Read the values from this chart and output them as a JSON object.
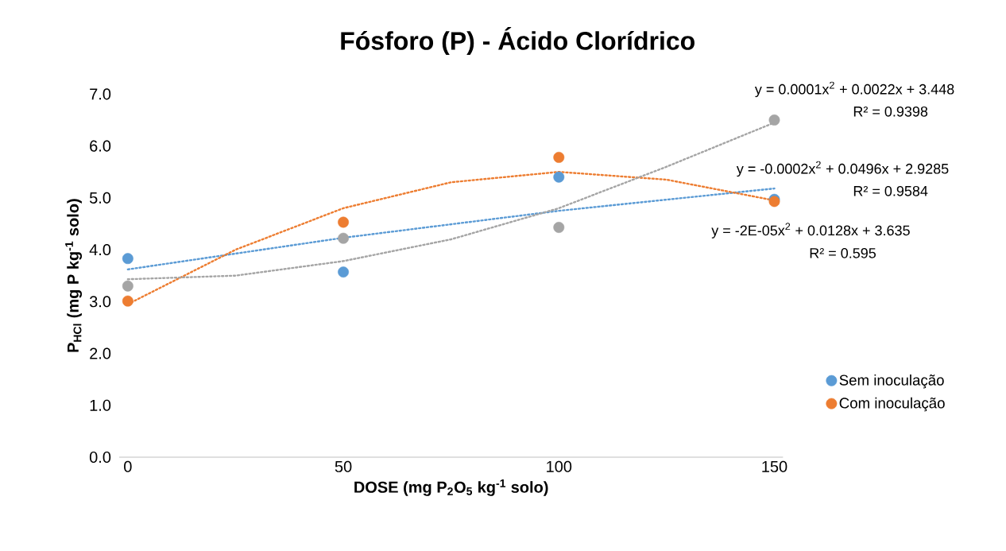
{
  "chart_data": {
    "type": "scatter",
    "title": "Fósforo (P) - Ácido Clorídrico",
    "xlabel": "DOSE (mg P$_{2}$O$_{5}$ kg$^{-1}$ solo)",
    "ylabel": "P$_{HCl}$ (mg P kg$^{-1}$ solo)",
    "x": [
      0,
      50,
      100,
      150
    ],
    "series": [
      {
        "name": "Sem inoculação",
        "color": "#5b9bd5",
        "marker": "circle",
        "values": [
          3.83,
          3.57,
          5.4,
          4.97
        ]
      },
      {
        "name": "Com inoculação",
        "color": "#ed7d31",
        "marker": "circle",
        "values": [
          3.01,
          4.53,
          5.78,
          4.93
        ]
      },
      {
        "color": "#a5a5a5",
        "marker": "circle",
        "values": [
          3.3,
          4.22,
          4.43,
          6.5
        ]
      },
      {
        "type": "line",
        "color": "#5b9bd5",
        "marker": "none",
        "line_style": "dotted",
        "x": [
          0,
          50,
          100,
          150
        ],
        "values": [
          3.62,
          4.23,
          4.75,
          5.18
        ]
      },
      {
        "type": "line",
        "color": "#ed7d31",
        "marker": "none",
        "line_style": "dotted",
        "x": [
          0,
          25,
          50,
          75,
          100,
          125,
          150
        ],
        "values": [
          2.95,
          4.0,
          4.8,
          5.3,
          5.5,
          5.35,
          4.95
        ]
      },
      {
        "type": "line",
        "color": "#a5a5a5",
        "marker": "none",
        "line_style": "dotted",
        "x": [
          0,
          25,
          50,
          75,
          100,
          125,
          150
        ],
        "values": [
          3.43,
          3.5,
          3.78,
          4.2,
          4.8,
          5.6,
          6.45
        ]
      }
    ],
    "xlim": [
      -2,
      152
    ],
    "ylim": [
      0,
      7
    ],
    "xticks": [
      0,
      50,
      100,
      150
    ],
    "yticks": [
      {
        "value": 0,
        "label": "0.0"
      },
      {
        "value": 1,
        "label": "1.0"
      },
      {
        "value": 2,
        "label": "2.0"
      },
      {
        "value": 3,
        "label": "3.0"
      },
      {
        "value": 4,
        "label": "4.0"
      },
      {
        "value": 5,
        "label": "5.0"
      },
      {
        "value": 6,
        "label": "6.0"
      },
      {
        "value": 7,
        "label": "7.0"
      }
    ],
    "legend": "right",
    "annotations": [
      "y = 0.0001x$^{2}$ + 0.0022x + 3.448",
      "R² = 0.9398",
      "y = -0.0002x$^{2}$ + 0.0496x + 2.9285",
      "R² = 0.9584",
      "y = -2E-05x$^{2}$ + 0.0128x + 3.635",
      "R² = 0.595"
    ]
  }
}
